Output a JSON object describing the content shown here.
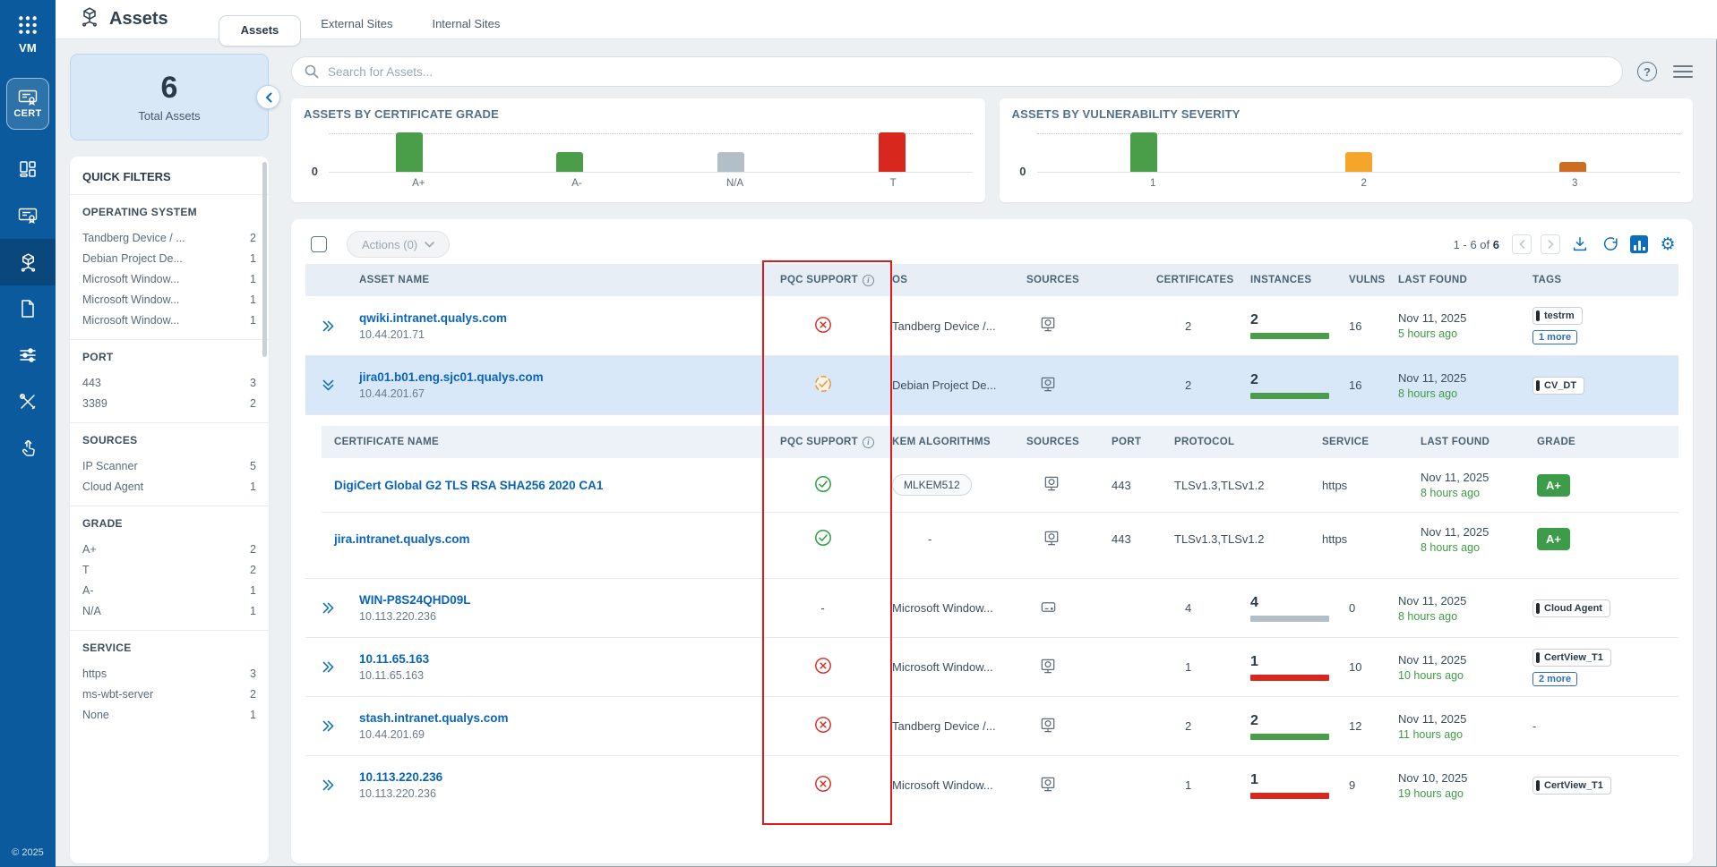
{
  "app": {
    "launcher": "app-grid",
    "module_short": "VM",
    "module_chip": "CERT",
    "copyright": "© 2025"
  },
  "sidebar": {
    "items": [
      {
        "icon": "dashboard",
        "active": false
      },
      {
        "icon": "certificates",
        "active": false
      },
      {
        "icon": "assets",
        "active": true
      },
      {
        "icon": "reports",
        "active": false
      },
      {
        "icon": "configuration",
        "active": false
      },
      {
        "icon": "tools",
        "active": false
      },
      {
        "icon": "activity",
        "active": false
      }
    ]
  },
  "header": {
    "title": "Assets",
    "tabs": [
      {
        "label": "Assets",
        "active": true
      },
      {
        "label": "External Sites",
        "active": false
      },
      {
        "label": "Internal Sites",
        "active": false
      }
    ]
  },
  "summary": {
    "count": "6",
    "label": "Total Assets"
  },
  "search": {
    "placeholder": "Search for Assets..."
  },
  "chart_data": [
    {
      "type": "bar",
      "title": "ASSETS BY CERTIFICATE GRADE",
      "categories": [
        "A+",
        "A-",
        "N/A",
        "T"
      ],
      "values": [
        2,
        1,
        1,
        2
      ],
      "colors": [
        "#4a9e4a",
        "#4a9e4a",
        "#b3bfc7",
        "#d8271c"
      ],
      "ylim": [
        0,
        2
      ],
      "baseline_label": "0",
      "grid": "top dotted gridline, baseline solid",
      "legend": "none"
    },
    {
      "type": "bar",
      "title": "ASSETS BY VULNERABILITY SEVERITY",
      "categories": [
        "1",
        "2",
        "3"
      ],
      "values": [
        4,
        2,
        1
      ],
      "colors": [
        "#4a9e4a",
        "#f5a62a",
        "#cc6d1f"
      ],
      "ylim": [
        0,
        4
      ],
      "baseline_label": "0",
      "grid": "top dotted gridline, baseline solid",
      "legend": "none"
    }
  ],
  "filters": {
    "title": "QUICK FILTERS",
    "sections": [
      {
        "title": "OPERATING SYSTEM",
        "items": [
          {
            "label": "Tandberg Device / ...",
            "count": "2"
          },
          {
            "label": "Debian Project De...",
            "count": "1"
          },
          {
            "label": "Microsoft Window...",
            "count": "1"
          },
          {
            "label": "Microsoft Window...",
            "count": "1"
          },
          {
            "label": "Microsoft Window...",
            "count": "1"
          }
        ]
      },
      {
        "title": "PORT",
        "items": [
          {
            "label": "443",
            "count": "3"
          },
          {
            "label": "3389",
            "count": "2"
          }
        ]
      },
      {
        "title": "SOURCES",
        "items": [
          {
            "label": "IP Scanner",
            "count": "5"
          },
          {
            "label": "Cloud Agent",
            "count": "1"
          }
        ]
      },
      {
        "title": "GRADE",
        "items": [
          {
            "label": "A+",
            "count": "2"
          },
          {
            "label": "T",
            "count": "2"
          },
          {
            "label": "A-",
            "count": "1"
          },
          {
            "label": "N/A",
            "count": "1"
          }
        ]
      },
      {
        "title": "SERVICE",
        "items": [
          {
            "label": "https",
            "count": "3"
          },
          {
            "label": "ms-wbt-server",
            "count": "2"
          },
          {
            "label": "None",
            "count": "1"
          }
        ]
      }
    ]
  },
  "table": {
    "select_all_checked": false,
    "actions_label": "Actions (0)",
    "pagination": {
      "range": "1 - 6 of",
      "total": "6"
    },
    "columns": [
      "ASSET NAME",
      "PQC SUPPORT",
      "OS",
      "SOURCES",
      "CERTIFICATES",
      "INSTANCES",
      "VULNS",
      "LAST FOUND",
      "TAGS"
    ],
    "pqc_info_icon": "info-icon",
    "rows": [
      {
        "expand": "collapsed",
        "name": "qwiki.intranet.qualys.com",
        "ip": "10.44.201.71",
        "pqc": "no",
        "os": "Tandberg Device /...",
        "source": "scanner",
        "certificates": "2",
        "instances": "2",
        "instance_bar": "green",
        "vulns": "16",
        "last_found": "Nov 11, 2025",
        "ago": "5 hours ago",
        "tags": [
          "testrm"
        ],
        "more": "1 more"
      },
      {
        "expand": "expanded",
        "name": "jira01.b01.eng.sjc01.qualys.com",
        "ip": "10.44.201.67",
        "pqc": "partial",
        "os": "Debian Project De...",
        "source": "scanner",
        "certificates": "2",
        "instances": "2",
        "instance_bar": "green",
        "vulns": "16",
        "last_found": "Nov 11, 2025",
        "ago": "8 hours ago",
        "tags": [
          "CV_DT"
        ],
        "more": ""
      },
      {
        "expand": "collapsed",
        "name": "WIN-P8S24QHD09L",
        "ip": "10.113.220.236",
        "pqc": "none",
        "os": "Microsoft Window...",
        "source": "agent",
        "certificates": "4",
        "instances": "4",
        "instance_bar": "gray",
        "vulns": "0",
        "last_found": "Nov 11, 2025",
        "ago": "8 hours ago",
        "tags": [
          "Cloud Agent"
        ],
        "more": ""
      },
      {
        "expand": "collapsed",
        "name": "10.11.65.163",
        "ip": "10.11.65.163",
        "pqc": "no",
        "os": "Microsoft Window...",
        "source": "scanner",
        "certificates": "1",
        "instances": "1",
        "instance_bar": "red",
        "vulns": "10",
        "last_found": "Nov 11, 2025",
        "ago": "10 hours ago",
        "tags": [
          "CertView_T1"
        ],
        "more": "2 more"
      },
      {
        "expand": "collapsed",
        "name": "stash.intranet.qualys.com",
        "ip": "10.44.201.69",
        "pqc": "no",
        "os": "Tandberg Device /...",
        "source": "scanner",
        "certificates": "2",
        "instances": "2",
        "instance_bar": "green",
        "vulns": "12",
        "last_found": "Nov 11, 2025",
        "ago": "11 hours ago",
        "tags": [],
        "more": "",
        "empty_tags": "-"
      },
      {
        "expand": "collapsed",
        "name": "10.113.220.236",
        "ip": "10.113.220.236",
        "pqc": "no",
        "os": "Microsoft Window...",
        "source": "scanner",
        "certificates": "1",
        "instances": "1",
        "instance_bar": "red",
        "vulns": "9",
        "last_found": "Nov 10, 2025",
        "ago": "19 hours ago",
        "tags": [
          "CertView_T1"
        ],
        "more": ""
      }
    ]
  },
  "subtable": {
    "attached_to_row": 1,
    "columns": [
      "CERTIFICATE NAME",
      "PQC SUPPORT",
      "KEM ALGORITHMS",
      "SOURCES",
      "PORT",
      "PROTOCOL",
      "SERVICE",
      "LAST FOUND",
      "GRADE"
    ],
    "rows": [
      {
        "name": "DigiCert Global G2 TLS RSA SHA256 2020 CA1",
        "pqc": "yes",
        "kem": "MLKEM512",
        "source": "scanner",
        "port": "443",
        "protocol": "TLSv1.3,TLSv1.2",
        "service": "https",
        "last_found": "Nov 11, 2025",
        "ago": "8 hours ago",
        "grade": "A+"
      },
      {
        "name": "jira.intranet.qualys.com",
        "pqc": "yes",
        "kem": "-",
        "source": "scanner",
        "port": "443",
        "protocol": "TLSv1.3,TLSv1.2",
        "service": "https",
        "last_found": "Nov 11, 2025",
        "ago": "8 hours ago",
        "grade": "A+"
      }
    ]
  },
  "annotation": {
    "type": "red-rectangle",
    "target": "PQC SUPPORT column",
    "color": "#e01b1b"
  }
}
